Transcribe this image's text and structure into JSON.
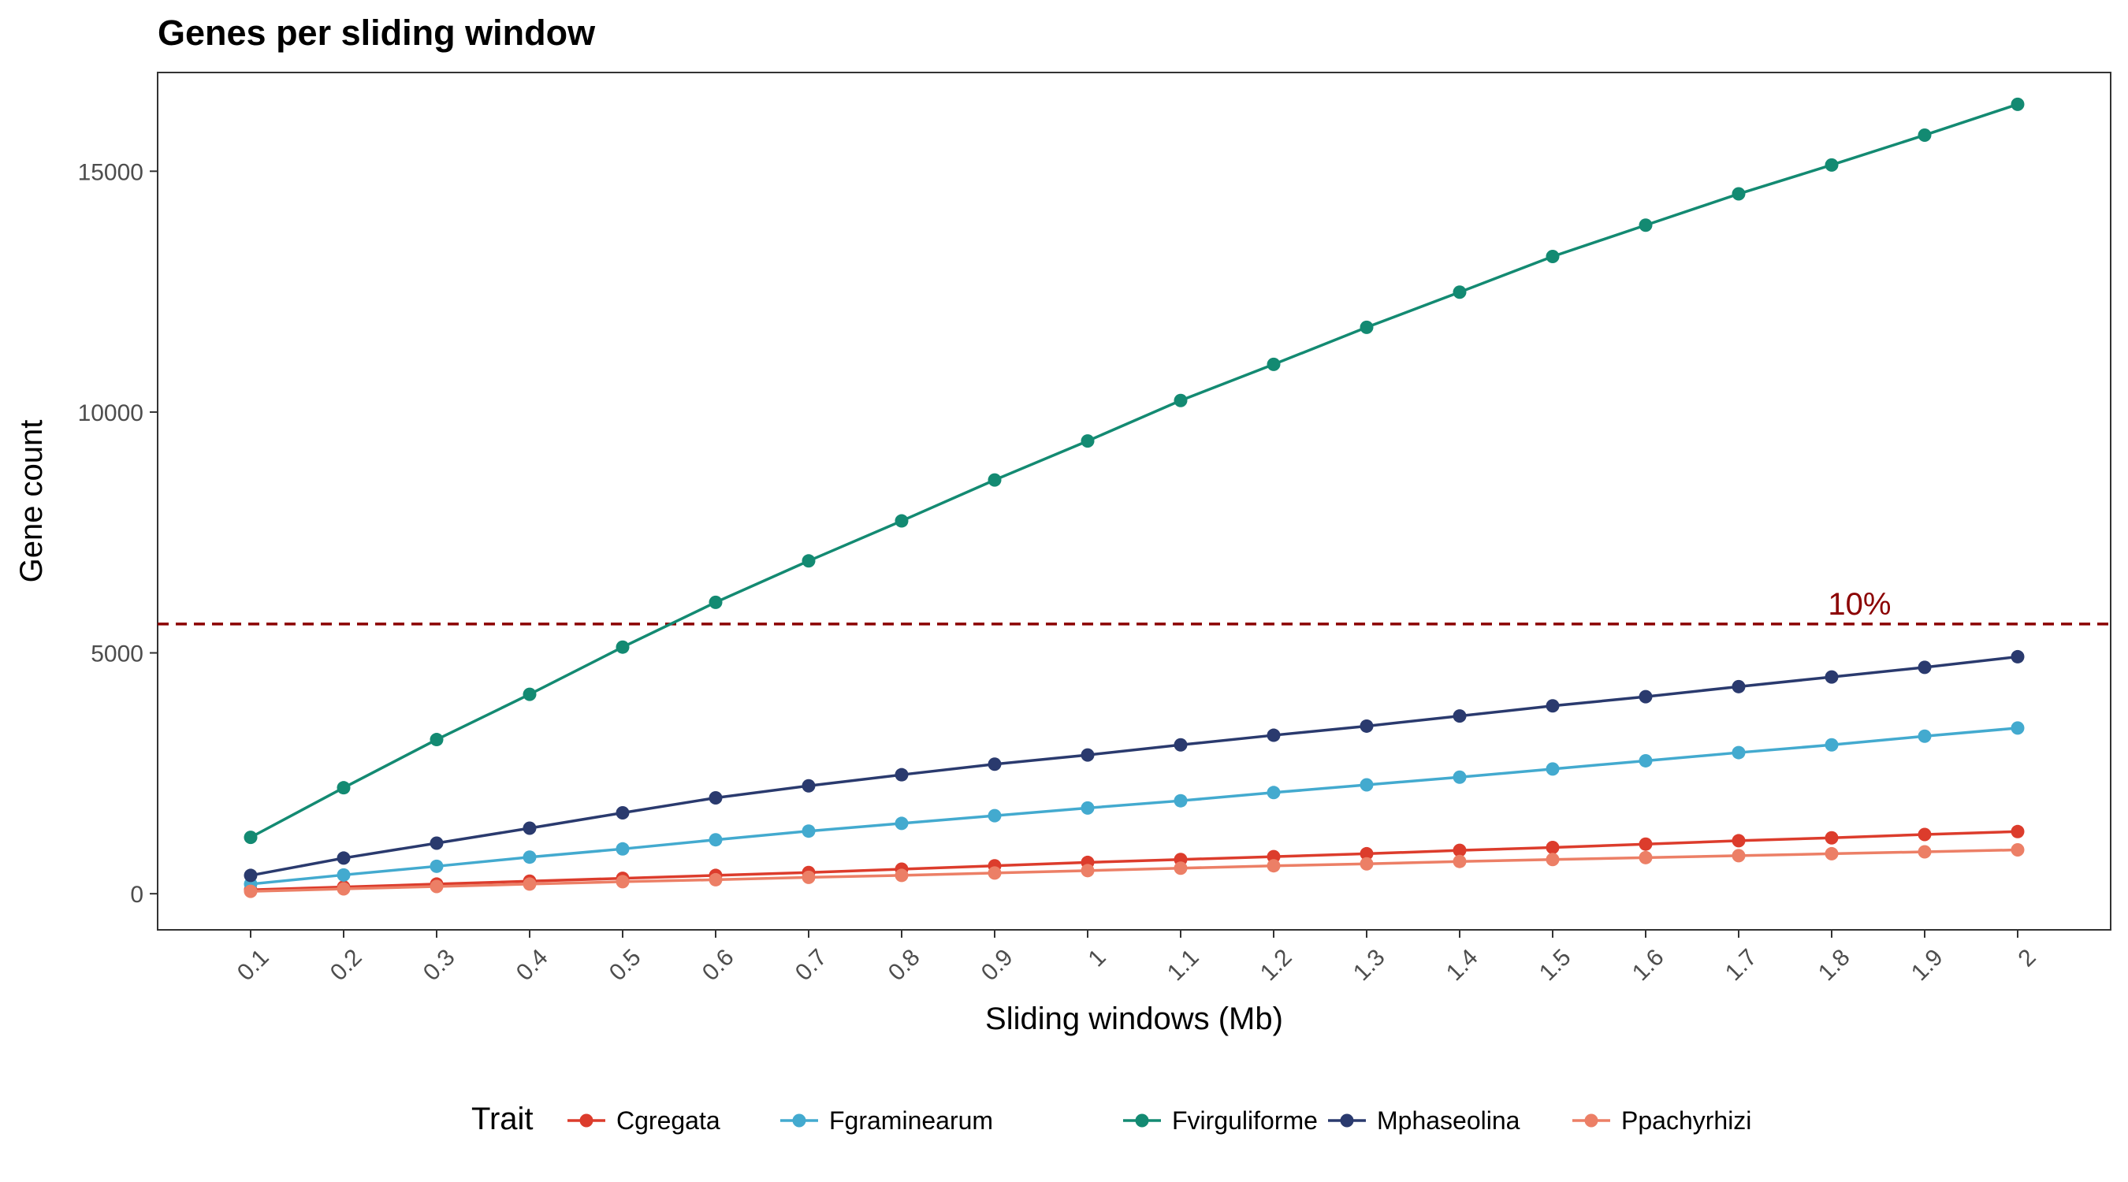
{
  "chart_data": {
    "type": "line",
    "title": "Genes per sliding window",
    "xlabel": "Sliding windows (Mb)",
    "ylabel": "Gene count",
    "x": [
      0.1,
      0.2,
      0.3,
      0.4,
      0.5,
      0.6,
      0.7,
      0.8,
      0.9,
      1,
      1.1,
      1.2,
      1.3,
      1.4,
      1.5,
      1.6,
      1.7,
      1.8,
      1.9,
      2
    ],
    "x_tick_labels": [
      "0.1",
      "0.2",
      "0.3",
      "0.4",
      "0.5",
      "0.6",
      "0.7",
      "0.8",
      "0.9",
      "1",
      "1.1",
      "1.2",
      "1.3",
      "1.4",
      "1.5",
      "1.6",
      "1.7",
      "1.8",
      "1.9",
      "2"
    ],
    "y_ticks": [
      0,
      5000,
      10000,
      15000
    ],
    "y_tick_labels": [
      "0",
      "5000",
      "10000",
      "15000"
    ],
    "ylim": [
      -750,
      17050
    ],
    "grid": false,
    "legend": {
      "title": "Trait",
      "position": "bottom"
    },
    "reference_line": {
      "y": 5600,
      "label": "10%",
      "label_x": 1.83,
      "style": "dashed",
      "color": "#8b0000"
    },
    "series": [
      {
        "name": "Cgregata",
        "color": "#dc3c2c",
        "values": [
          80,
          140,
          200,
          260,
          320,
          380,
          440,
          510,
          580,
          650,
          710,
          770,
          830,
          900,
          960,
          1030,
          1100,
          1160,
          1230,
          1290
        ]
      },
      {
        "name": "Fgraminearum",
        "color": "#43aacf",
        "values": [
          200,
          390,
          570,
          760,
          930,
          1120,
          1300,
          1460,
          1620,
          1780,
          1930,
          2100,
          2260,
          2420,
          2590,
          2760,
          2930,
          3090,
          3270,
          3440
        ]
      },
      {
        "name": "Fvirguliforme",
        "color": "#138a72",
        "values": [
          1170,
          2200,
          3200,
          4140,
          5120,
          6050,
          6910,
          7740,
          8590,
          9400,
          10240,
          10990,
          11760,
          12490,
          13230,
          13880,
          14530,
          15130,
          15750,
          16390
        ]
      },
      {
        "name": "Mphaseolina",
        "color": "#2a3a6e",
        "values": [
          380,
          740,
          1050,
          1360,
          1680,
          1990,
          2240,
          2470,
          2690,
          2880,
          3090,
          3290,
          3480,
          3690,
          3900,
          4090,
          4300,
          4500,
          4700,
          4920
        ]
      },
      {
        "name": "Ppachyrhizi",
        "color": "#ec7f66",
        "values": [
          50,
          100,
          150,
          200,
          250,
          290,
          340,
          380,
          430,
          480,
          530,
          580,
          620,
          670,
          710,
          750,
          790,
          830,
          870,
          910
        ]
      }
    ]
  }
}
